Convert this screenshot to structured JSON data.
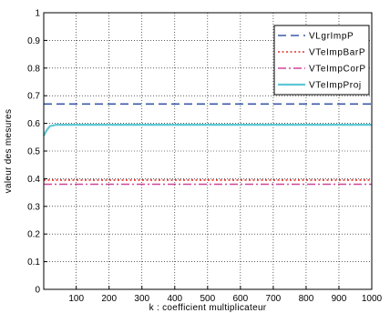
{
  "chart_data": {
    "type": "line",
    "xlabel": "k : coefficient multiplicateur",
    "ylabel": "valeur des mesures",
    "xlim": [
      1,
      1000
    ],
    "ylim": [
      0,
      1
    ],
    "x_ticks": [
      100,
      200,
      300,
      400,
      500,
      600,
      700,
      800,
      900,
      1000
    ],
    "y_ticks": [
      0,
      0.1,
      0.2,
      0.3,
      0.4,
      0.5,
      0.6,
      0.7,
      0.8,
      0.9,
      1
    ],
    "y_tick_labels": [
      "0",
      "0.1",
      "0.2",
      "0.3",
      "0.4",
      "0.5",
      "0.6",
      "0.7",
      "0.8",
      "0.9",
      "1"
    ],
    "grid": true,
    "legend_position": "top-right",
    "series": [
      {
        "name": "VLgrImpP",
        "color": "#3a5aa8",
        "dash": "dashed",
        "x": [
          1,
          1000
        ],
        "y": [
          0.67,
          0.67
        ]
      },
      {
        "name": "VTeImpBarP",
        "color": "#e0302a",
        "dash": "dotted",
        "x": [
          1,
          1000
        ],
        "y": [
          0.395,
          0.395
        ]
      },
      {
        "name": "VTeImpCorP",
        "color": "#d0459a",
        "dash": "dashdot",
        "x": [
          1,
          1000
        ],
        "y": [
          0.38,
          0.38
        ]
      },
      {
        "name": "VTeImpProj",
        "color": "#5ec8d6",
        "dash": "solid",
        "x": [
          1,
          10,
          20,
          40,
          1000
        ],
        "y": [
          0.555,
          0.575,
          0.59,
          0.595,
          0.595
        ]
      }
    ]
  }
}
